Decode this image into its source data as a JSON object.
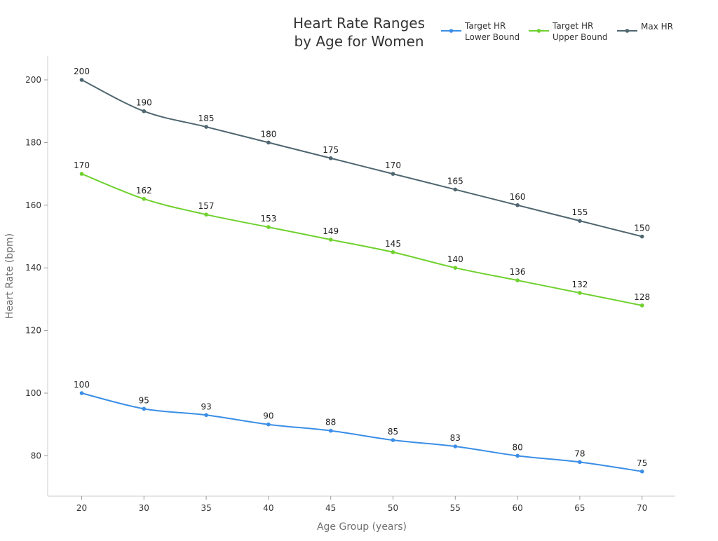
{
  "chart_data": {
    "type": "line",
    "title_lines": [
      "Heart Rate Ranges",
      "by Age for Women"
    ],
    "xlabel": "Age Group (years)",
    "ylabel": "Heart Rate (bpm)",
    "x": [
      20,
      30,
      35,
      40,
      45,
      50,
      55,
      60,
      65,
      70
    ],
    "ylim": [
      67,
      208
    ],
    "yticks": [
      80,
      100,
      120,
      140,
      160,
      180,
      200
    ],
    "grid": false,
    "legend_position": "top-right",
    "series": [
      {
        "key": "lower",
        "name_lines": [
          "Target HR",
          "Lower Bound"
        ],
        "color": "#3a8ee6",
        "values": [
          100,
          95,
          93,
          90,
          88,
          85,
          83,
          80,
          78,
          75
        ]
      },
      {
        "key": "upper",
        "name_lines": [
          "Target HR",
          "Upper Bound"
        ],
        "color": "#6fd12e",
        "values": [
          170,
          162,
          157,
          153,
          149,
          145,
          140,
          136,
          132,
          128
        ]
      },
      {
        "key": "max",
        "name_lines": [
          "Max HR"
        ],
        "color": "#4f6670",
        "values": [
          200,
          190,
          185,
          180,
          175,
          170,
          165,
          160,
          155,
          150
        ]
      }
    ]
  }
}
